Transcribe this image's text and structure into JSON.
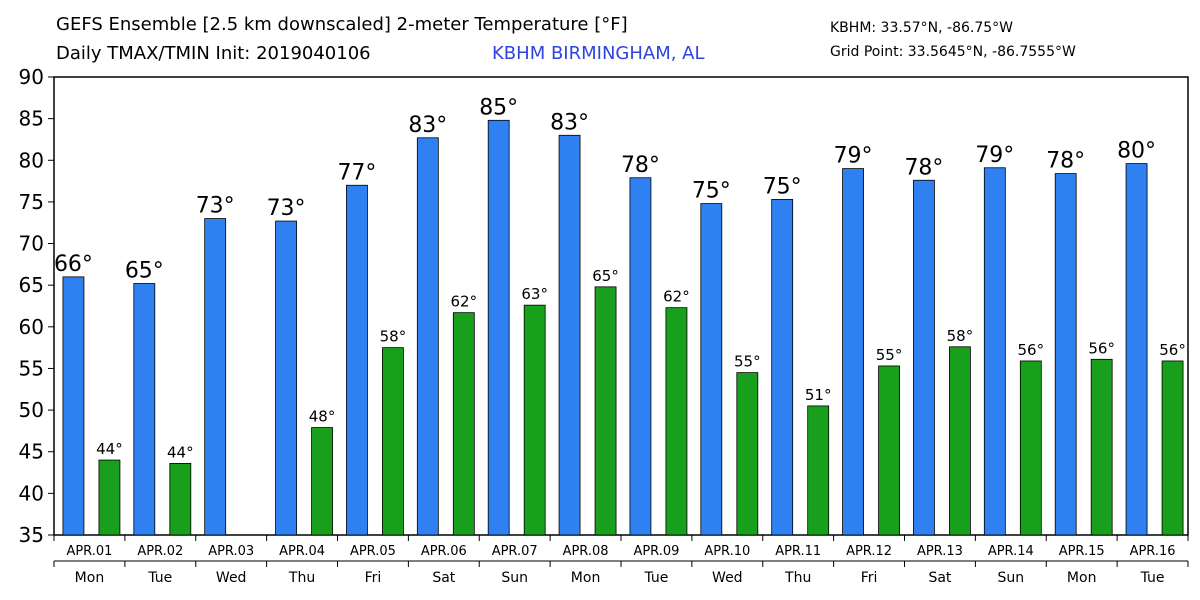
{
  "header": {
    "title_line1": "GEFS Ensemble [2.5 km downscaled] 2-meter Temperature [°F]",
    "title_line2": "Daily TMAX/TMIN Init: 2019040106",
    "station": "KBHM BIRMINGHAM, AL",
    "coord_line1": "KBHM: 33.57°N, -86.75°W",
    "coord_line2": "Grid Point: 33.5645°N, -86.7555°W"
  },
  "chart_data": {
    "type": "bar",
    "categories": [
      "APR.01",
      "APR.02",
      "APR.03",
      "APR.04",
      "APR.05",
      "APR.06",
      "APR.07",
      "APR.08",
      "APR.09",
      "APR.10",
      "APR.11",
      "APR.12",
      "APR.13",
      "APR.14",
      "APR.15",
      "APR.16"
    ],
    "weekdays": [
      "Mon",
      "Tue",
      "Wed",
      "Thu",
      "Fri",
      "Sat",
      "Sun",
      "Mon",
      "Tue",
      "Wed",
      "Thu",
      "Fri",
      "Sat",
      "Sun",
      "Mon",
      "Tue"
    ],
    "series": [
      {
        "color": "#2f81f2",
        "values": [
          66,
          65.2,
          73,
          72.7,
          77,
          82.7,
          84.8,
          83,
          77.9,
          74.8,
          75.3,
          79,
          77.6,
          79.1,
          78.4,
          79.6
        ],
        "labels": [
          "66°",
          "65°",
          "73°",
          "73°",
          "77°",
          "83°",
          "85°",
          "83°",
          "78°",
          "75°",
          "75°",
          "79°",
          "78°",
          "79°",
          "78°",
          "80°"
        ]
      },
      {
        "color": "#18a01c",
        "values": [
          44,
          43.6,
          null,
          47.9,
          57.5,
          61.7,
          62.6,
          64.8,
          62.3,
          54.5,
          50.5,
          55.3,
          57.6,
          55.9,
          56.1,
          55.9
        ],
        "labels": [
          "44°",
          "44°",
          "",
          "48°",
          "58°",
          "62°",
          "63°",
          "65°",
          "62°",
          "55°",
          "51°",
          "55°",
          "58°",
          "56°",
          "56°",
          "56°"
        ]
      }
    ],
    "ylim": [
      35,
      90
    ],
    "yticks": [
      35,
      40,
      45,
      50,
      55,
      60,
      65,
      70,
      75,
      80,
      85,
      90
    ],
    "grid": false
  }
}
